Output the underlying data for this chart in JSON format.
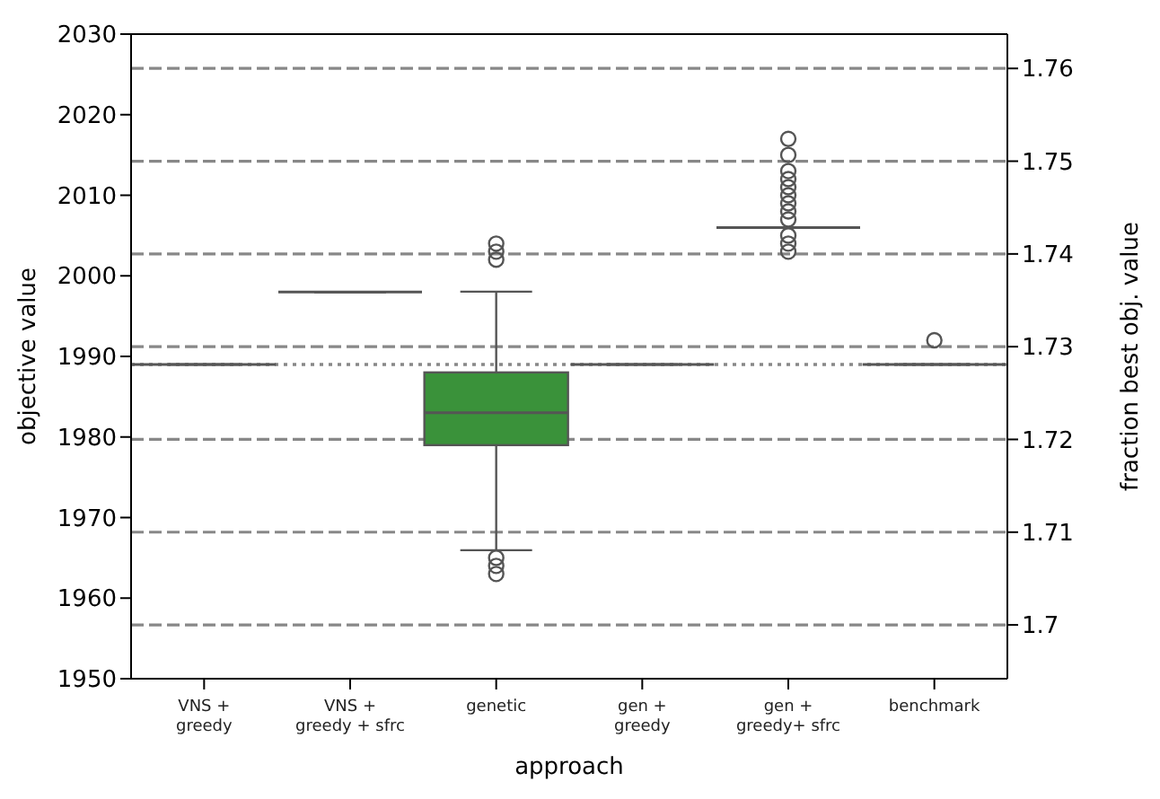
{
  "chart_data": {
    "type": "box",
    "xlabel": "approach",
    "ylabel": "objective value",
    "y2label": "fraction best obj. value",
    "categories": [
      "VNS +\ngreedy",
      "VNS +\ngreedy + sfrc",
      "genetic",
      "gen +\ngreedy",
      "gen +\ngreedy+ sfrc",
      "benchmark"
    ],
    "colors": [
      "#555555",
      "#555555",
      "#3a923a",
      "#555555",
      "#555555",
      "#555555"
    ],
    "boxes": [
      {
        "low": 1989,
        "q1": 1989,
        "median": 1989,
        "q3": 1989,
        "high": 1989
      },
      {
        "low": 1998,
        "q1": 1998,
        "median": 1998,
        "q3": 1998,
        "high": 1998
      },
      {
        "low": 1966,
        "q1": 1979,
        "median": 1983,
        "q3": 1988,
        "high": 1998,
        "outliers": [
          1963,
          1964,
          1965,
          2002,
          2003,
          2004
        ]
      },
      {
        "low": 1989,
        "q1": 1989,
        "median": 1989,
        "q3": 1989,
        "high": 1989
      },
      {
        "low": 2006,
        "q1": 2006,
        "median": 2006,
        "q3": 2006,
        "high": 2006,
        "outliers": [
          2003,
          2004,
          2005,
          2007,
          2008,
          2009,
          2010,
          2011,
          2012,
          2013,
          2015,
          2017
        ]
      },
      {
        "low": 1989,
        "q1": 1989,
        "median": 1989,
        "q3": 1989,
        "high": 1989,
        "outliers": [
          1992
        ]
      }
    ],
    "ylim": [
      1950,
      2030
    ],
    "yticks": [
      1950,
      1960,
      1970,
      1980,
      1990,
      2000,
      2010,
      2020,
      2030
    ],
    "y2lim": [
      1.6942,
      1.7637
    ],
    "y2ticks": [
      {
        "value": 1.7,
        "label": "1.7"
      },
      1.71,
      1.72,
      1.73,
      1.74,
      1.75,
      1.76
    ],
    "grid": "y2",
    "ref_lines": [
      {
        "axis": "y",
        "value": 1989,
        "color": "#888888",
        "line_style": "dotted"
      }
    ]
  }
}
